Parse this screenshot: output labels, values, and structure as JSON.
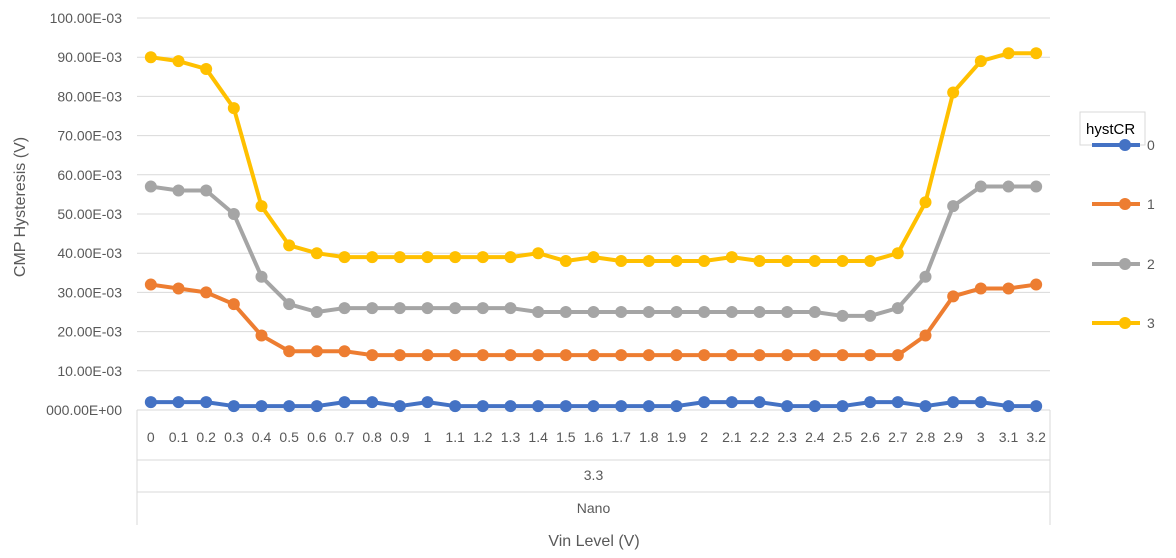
{
  "chart_data": {
    "type": "line",
    "ylabel": "CMP Hysteresis (V)",
    "xlabel": "Vin Level (V)",
    "x": [
      "0",
      "0.1",
      "0.2",
      "0.3",
      "0.4",
      "0.5",
      "0.6",
      "0.7",
      "0.8",
      "0.9",
      "1",
      "1.1",
      "1.2",
      "1.3",
      "1.4",
      "1.5",
      "1.6",
      "1.7",
      "1.8",
      "1.9",
      "2",
      "2.1",
      "2.2",
      "2.3",
      "2.4",
      "2.5",
      "2.6",
      "2.7",
      "2.8",
      "2.9",
      "3",
      "3.1",
      "3.2"
    ],
    "x_group_levels": [
      {
        "label": "3.3"
      },
      {
        "label": "Nano"
      }
    ],
    "ylim": [
      0,
      0.1
    ],
    "yticks": [
      0,
      0.01,
      0.02,
      0.03,
      0.04,
      0.05,
      0.06,
      0.07,
      0.08,
      0.09,
      0.1
    ],
    "ytick_labels": [
      "000.00E+00",
      "10.00E-03",
      "20.00E-03",
      "30.00E-03",
      "40.00E-03",
      "50.00E-03",
      "60.00E-03",
      "70.00E-03",
      "80.00E-03",
      "90.00E-03",
      "100.00E-03"
    ],
    "grid": true,
    "legend": {
      "title": "hystCR",
      "placement": "right"
    },
    "series": [
      {
        "name": "0",
        "color": "#4472C4",
        "values": [
          0.002,
          0.002,
          0.002,
          0.001,
          0.001,
          0.001,
          0.001,
          0.002,
          0.002,
          0.001,
          0.002,
          0.001,
          0.001,
          0.001,
          0.001,
          0.001,
          0.001,
          0.001,
          0.001,
          0.001,
          0.002,
          0.002,
          0.002,
          0.001,
          0.001,
          0.001,
          0.002,
          0.002,
          0.001,
          0.002,
          0.002,
          0.001,
          0.001
        ]
      },
      {
        "name": "1",
        "color": "#ED7D31",
        "values": [
          0.032,
          0.031,
          0.03,
          0.027,
          0.019,
          0.015,
          0.015,
          0.015,
          0.014,
          0.014,
          0.014,
          0.014,
          0.014,
          0.014,
          0.014,
          0.014,
          0.014,
          0.014,
          0.014,
          0.014,
          0.014,
          0.014,
          0.014,
          0.014,
          0.014,
          0.014,
          0.014,
          0.014,
          0.019,
          0.029,
          0.031,
          0.031,
          0.032
        ]
      },
      {
        "name": "2",
        "color": "#A5A5A5",
        "values": [
          0.057,
          0.056,
          0.056,
          0.05,
          0.034,
          0.027,
          0.025,
          0.026,
          0.026,
          0.026,
          0.026,
          0.026,
          0.026,
          0.026,
          0.025,
          0.025,
          0.025,
          0.025,
          0.025,
          0.025,
          0.025,
          0.025,
          0.025,
          0.025,
          0.025,
          0.024,
          0.024,
          0.026,
          0.034,
          0.052,
          0.057,
          0.057,
          0.057
        ]
      },
      {
        "name": "3",
        "color": "#FFC000",
        "values": [
          0.09,
          0.089,
          0.087,
          0.077,
          0.052,
          0.042,
          0.04,
          0.039,
          0.039,
          0.039,
          0.039,
          0.039,
          0.039,
          0.039,
          0.04,
          0.038,
          0.039,
          0.038,
          0.038,
          0.038,
          0.038,
          0.039,
          0.038,
          0.038,
          0.038,
          0.038,
          0.038,
          0.04,
          0.053,
          0.081,
          0.089,
          0.091,
          0.091
        ]
      }
    ]
  }
}
